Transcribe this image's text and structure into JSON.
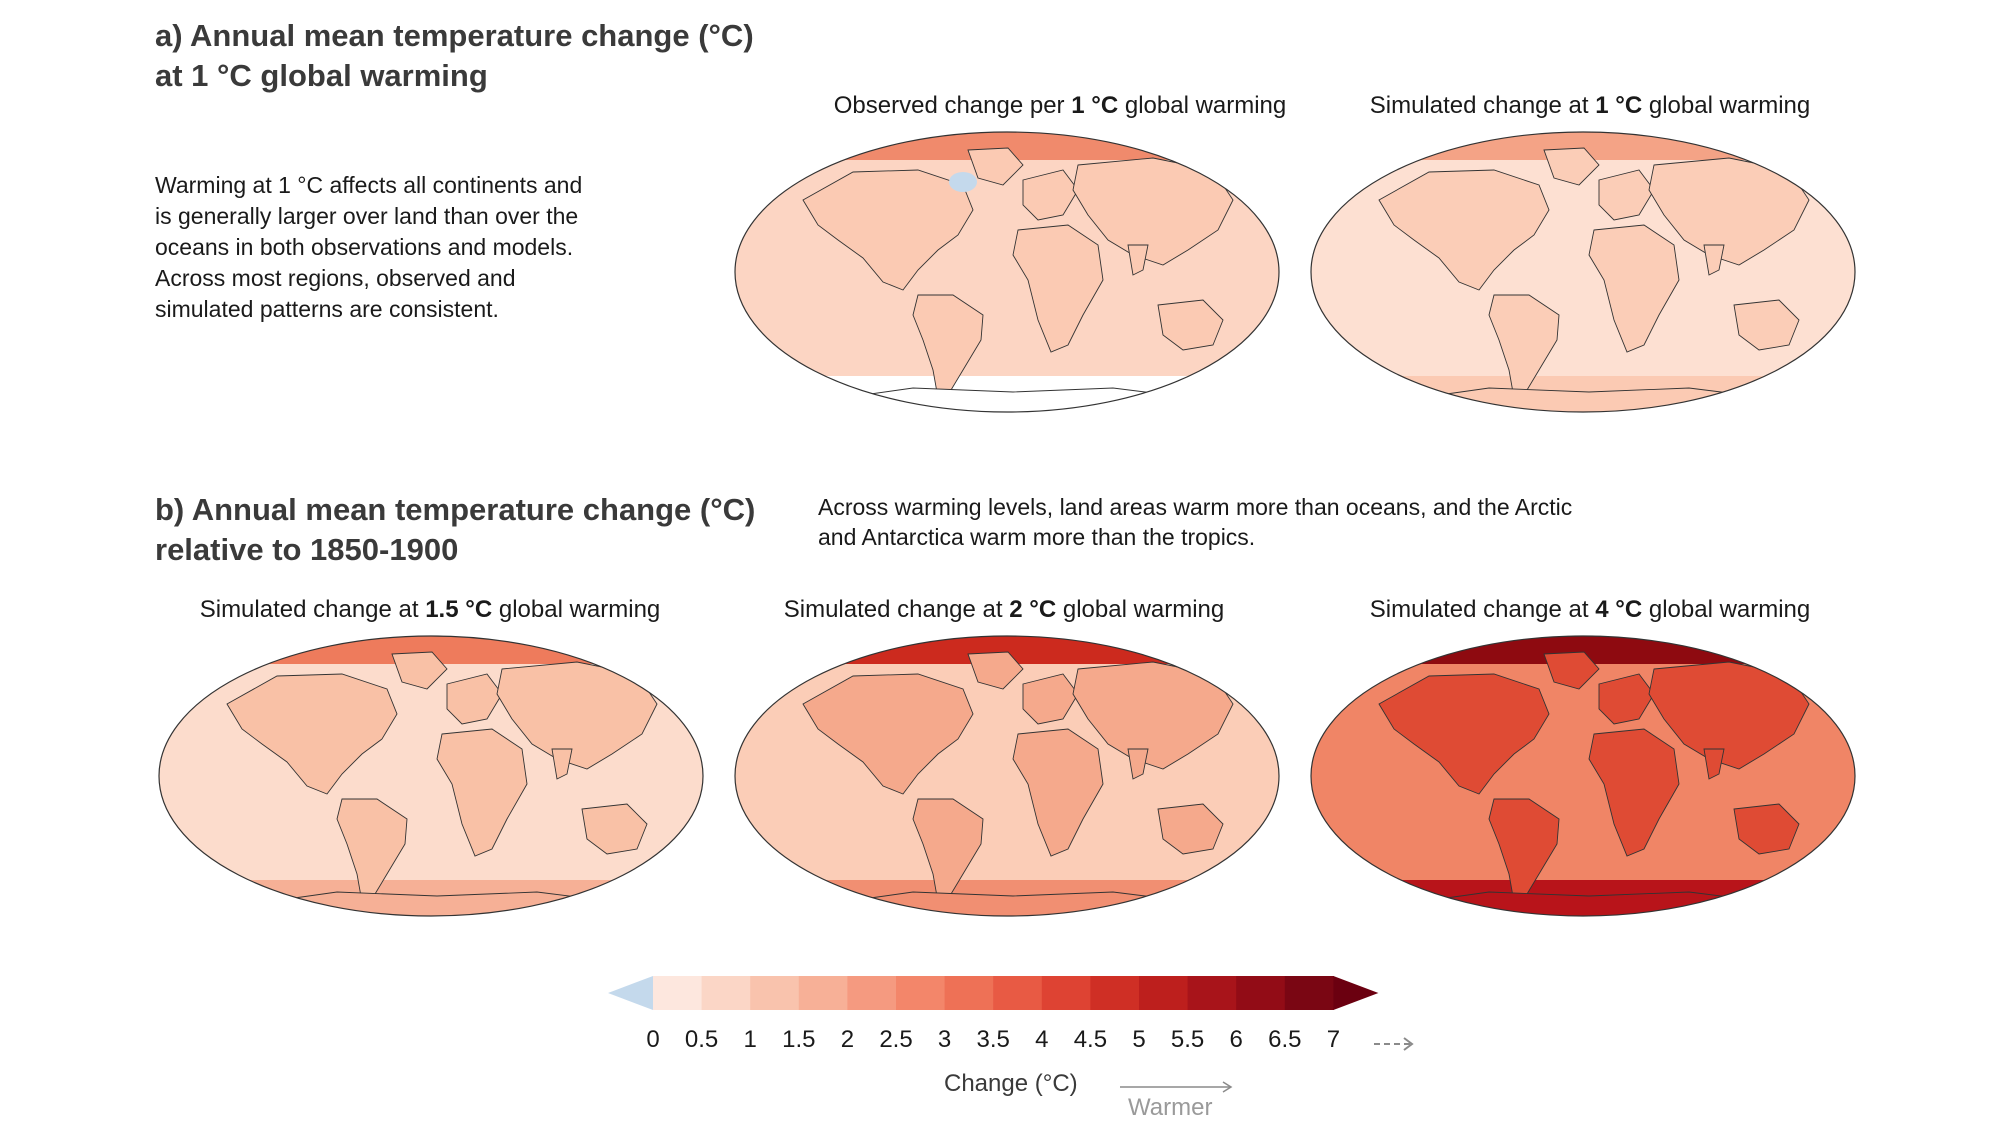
{
  "panel_a": {
    "title_line1": "a) Annual mean temperature change (°C)",
    "title_line2": "at 1 °C global warming",
    "description": [
      "Warming at 1 °C affects all continents and",
      "is generally larger over land than over the",
      "oceans in both observations and models.",
      "Across most regions, observed and",
      "simulated patterns are consistent."
    ]
  },
  "panel_b": {
    "title_line1": "b) Annual mean temperature change (°C)",
    "title_line2": "relative to 1850-1900",
    "description": [
      "Across warming levels, land areas warm more than oceans, and the Arctic",
      "and Antarctica warm more than the tropics."
    ]
  },
  "maps": [
    {
      "caption_pre": "Observed change per ",
      "caption_level": "1 °C",
      "caption_post": " global warming",
      "base_color": "#fcd5c3",
      "land_color": "#fbcab3",
      "arctic_color": "#f08a6c",
      "antarctic_color": "#ffffff",
      "anomaly": "blue-atlantic"
    },
    {
      "caption_pre": "Simulated change at ",
      "caption_level": "1 °C",
      "caption_post": " global warming",
      "base_color": "#fde0d2",
      "land_color": "#fbcdb7",
      "arctic_color": "#f4a386",
      "antarctic_color": "#fbcab3",
      "anomaly": "none"
    },
    {
      "caption_pre": "Simulated change at ",
      "caption_level": "1.5 °C",
      "caption_post": " global warming",
      "base_color": "#fcdccc",
      "land_color": "#f9c1a6",
      "arctic_color": "#ee7b5c",
      "antarctic_color": "#f6b096",
      "anomaly": "none"
    },
    {
      "caption_pre": "Simulated change at ",
      "caption_level": "2 °C",
      "caption_post": " global warming",
      "base_color": "#fbcdb7",
      "land_color": "#f5a98c",
      "arctic_color": "#cc2a1e",
      "antarctic_color": "#f18f72",
      "anomaly": "none"
    },
    {
      "caption_pre": "Simulated change at ",
      "caption_level": "4 °C",
      "caption_post": " global warming",
      "base_color": "#f08566",
      "land_color": "#df4b34",
      "arctic_color": "#8e0a10",
      "antarctic_color": "#b8141a",
      "anomaly": "none"
    }
  ],
  "colorbar": {
    "ticks": [
      "0",
      "0.5",
      "1",
      "1.5",
      "2",
      "2.5",
      "3",
      "3.5",
      "4",
      "4.5",
      "5",
      "5.5",
      "6",
      "6.5",
      "7"
    ],
    "colors": [
      "#fde7de",
      "#fbd6c6",
      "#f9c3ad",
      "#f7b097",
      "#f59a80",
      "#f3866a",
      "#ee7156",
      "#e85a44",
      "#de4333",
      "#cf2f25",
      "#bd1f1d",
      "#a8141a",
      "#920c16",
      "#7a0613"
    ],
    "under_color": "#c4d9ec",
    "over_color": "#6b0010",
    "label": "Change (°C)",
    "direction_label": "Warmer"
  }
}
